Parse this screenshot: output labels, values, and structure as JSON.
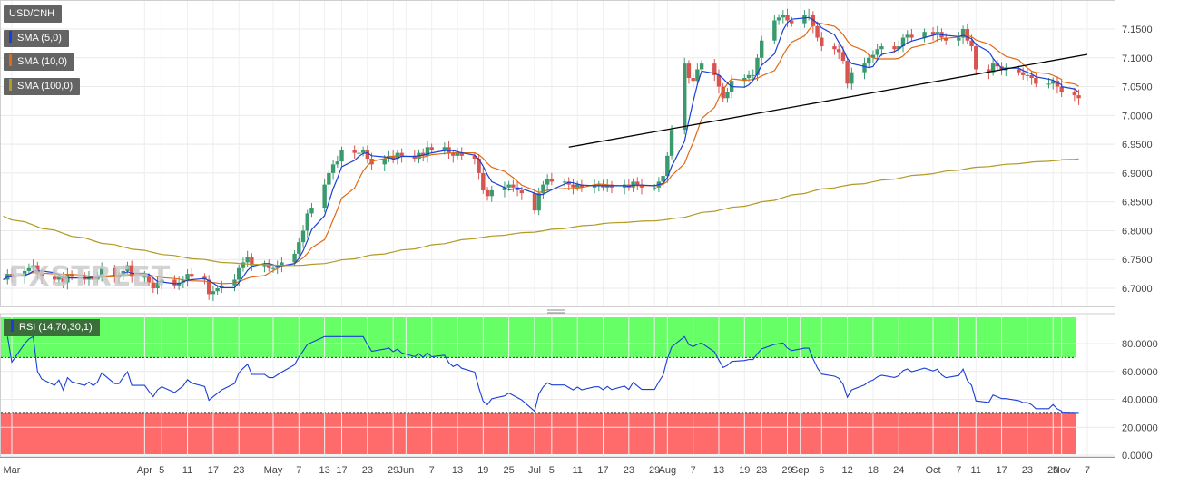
{
  "chart_data": [
    {
      "type": "candlestick",
      "title": "USD/CNH",
      "x_axis": {
        "ticks": [
          "Mar",
          "Apr",
          "5",
          "11",
          "17",
          "23",
          "May",
          "7",
          "13",
          "17",
          "23",
          "29",
          "Jun",
          "7",
          "13",
          "19",
          "25",
          "Jul",
          "5",
          "11",
          "17",
          "23",
          "29",
          "Aug",
          "7",
          "13",
          "19",
          "23",
          "29",
          "Sep",
          "6",
          "12",
          "18",
          "24",
          "Oct",
          "7",
          "11",
          "17",
          "23",
          "29",
          "Nov",
          "7"
        ]
      },
      "y_axis": {
        "ticks": [
          "7.1500",
          "7.1000",
          "7.0500",
          "7.0000",
          "6.9500",
          "6.9000",
          "6.8500",
          "6.8000",
          "6.7500",
          "6.7000"
        ],
        "range": [
          6.67,
          7.19
        ],
        "grid": true
      },
      "legend": [
        "USD/CNH",
        "SMA (5,0)",
        "SMA (10,0)",
        "SMA (100,0)"
      ],
      "colors": {
        "up": "#3a9a6e",
        "down": "#d9534f",
        "sma5": "#1a3fd6",
        "sma10": "#e06a16",
        "sma100": "#b29a24",
        "trendline": "#000000"
      },
      "trendline": [
        {
          "x": "Jul 9",
          "y": 6.945
        },
        {
          "x": "Nov 7",
          "y": 7.106
        }
      ],
      "series_close": [
        [
          "Feb 27",
          6.715
        ],
        [
          "Feb 28",
          6.725
        ],
        [
          "Mar 1",
          6.72
        ],
        [
          "Mar 4",
          6.73
        ],
        [
          "Mar 5",
          6.735
        ],
        [
          "Mar 6",
          6.74
        ],
        [
          "Mar 7",
          6.725
        ],
        [
          "Mar 8",
          6.72
        ],
        [
          "Mar 11",
          6.715
        ],
        [
          "Mar 12",
          6.72
        ],
        [
          "Mar 13",
          6.71
        ],
        [
          "Mar 14",
          6.725
        ],
        [
          "Mar 15",
          6.72
        ],
        [
          "Mar 18",
          6.715
        ],
        [
          "Mar 19",
          6.72
        ],
        [
          "Mar 20",
          6.715
        ],
        [
          "Mar 21",
          6.72
        ],
        [
          "Mar 22",
          6.735
        ],
        [
          "Mar 25",
          6.72
        ],
        [
          "Mar 26",
          6.72
        ],
        [
          "Mar 27",
          6.73
        ],
        [
          "Mar 28",
          6.74
        ],
        [
          "Mar 29",
          6.72
        ],
        [
          "Apr 1",
          6.72
        ],
        [
          "Apr 2",
          6.71
        ],
        [
          "Apr 3",
          6.7
        ],
        [
          "Apr 4",
          6.71
        ],
        [
          "Apr 5",
          6.715
        ],
        [
          "Apr 8",
          6.705
        ],
        [
          "Apr 9",
          6.71
        ],
        [
          "Apr 10",
          6.715
        ],
        [
          "Apr 11",
          6.725
        ],
        [
          "Apr 12",
          6.72
        ],
        [
          "Apr 15",
          6.715
        ],
        [
          "Apr 16",
          6.69
        ],
        [
          "Apr 17",
          6.695
        ],
        [
          "Apr 18",
          6.7
        ],
        [
          "Apr 19",
          6.705
        ],
        [
          "Apr 22",
          6.715
        ],
        [
          "Apr 23",
          6.735
        ],
        [
          "Apr 24",
          6.745
        ],
        [
          "Apr 25",
          6.755
        ],
        [
          "Apr 26",
          6.74
        ],
        [
          "Apr 29",
          6.74
        ],
        [
          "Apr 30",
          6.735
        ],
        [
          "May 1",
          6.735
        ],
        [
          "May 2",
          6.74
        ],
        [
          "May 3",
          6.745
        ],
        [
          "May 6",
          6.76
        ],
        [
          "May 7",
          6.78
        ],
        [
          "May 8",
          6.8
        ],
        [
          "May 9",
          6.83
        ],
        [
          "May 10",
          6.84
        ],
        [
          "May 13",
          6.88
        ],
        [
          "May 14",
          6.9
        ],
        [
          "May 15",
          6.915
        ],
        [
          "May 16",
          6.92
        ],
        [
          "May 17",
          6.94
        ],
        [
          "May 20",
          6.935
        ],
        [
          "May 21",
          6.935
        ],
        [
          "May 22",
          6.94
        ],
        [
          "May 23",
          6.925
        ],
        [
          "May 24",
          6.915
        ],
        [
          "May 27",
          6.925
        ],
        [
          "May 28",
          6.93
        ],
        [
          "May 29",
          6.925
        ],
        [
          "May 30",
          6.935
        ],
        [
          "May 31",
          6.93
        ],
        [
          "Jun 3",
          6.925
        ],
        [
          "Jun 4",
          6.935
        ],
        [
          "Jun 5",
          6.93
        ],
        [
          "Jun 6",
          6.945
        ],
        [
          "Jun 7",
          6.94
        ],
        [
          "Jun 10",
          6.945
        ],
        [
          "Jun 11",
          6.935
        ],
        [
          "Jun 12",
          6.93
        ],
        [
          "Jun 13",
          6.935
        ],
        [
          "Jun 14",
          6.93
        ],
        [
          "Jun 17",
          6.925
        ],
        [
          "Jun 18",
          6.9
        ],
        [
          "Jun 19",
          6.87
        ],
        [
          "Jun 20",
          6.86
        ],
        [
          "Jun 21",
          6.87
        ],
        [
          "Jun 24",
          6.875
        ],
        [
          "Jun 25",
          6.88
        ],
        [
          "Jun 26",
          6.875
        ],
        [
          "Jun 27",
          6.87
        ],
        [
          "Jun 28",
          6.865
        ],
        [
          "Jul 1",
          6.835
        ],
        [
          "Jul 2",
          6.865
        ],
        [
          "Jul 3",
          6.88
        ],
        [
          "Jul 4",
          6.89
        ],
        [
          "Jul 5",
          6.885
        ],
        [
          "Jul 8",
          6.885
        ],
        [
          "Jul 9",
          6.88
        ],
        [
          "Jul 10",
          6.875
        ],
        [
          "Jul 11",
          6.88
        ],
        [
          "Jul 12",
          6.875
        ],
        [
          "Jul 15",
          6.88
        ],
        [
          "Jul 16",
          6.88
        ],
        [
          "Jul 17",
          6.875
        ],
        [
          "Jul 18",
          6.88
        ],
        [
          "Jul 19",
          6.875
        ],
        [
          "Jul 22",
          6.88
        ],
        [
          "Jul 23",
          6.875
        ],
        [
          "Jul 24",
          6.885
        ],
        [
          "Jul 25",
          6.88
        ],
        [
          "Jul 26",
          6.875
        ],
        [
          "Jul 29",
          6.875
        ],
        [
          "Jul 30",
          6.885
        ],
        [
          "Jul 31",
          6.895
        ],
        [
          "Aug 1",
          6.93
        ],
        [
          "Aug 2",
          6.975
        ],
        [
          "Aug 5",
          7.09
        ],
        [
          "Aug 6",
          7.065
        ],
        [
          "Aug 7",
          7.06
        ],
        [
          "Aug 8",
          7.08
        ],
        [
          "Aug 9",
          7.09
        ],
        [
          "Aug 12",
          7.07
        ],
        [
          "Aug 13",
          7.05
        ],
        [
          "Aug 14",
          7.03
        ],
        [
          "Aug 15",
          7.04
        ],
        [
          "Aug 16",
          7.06
        ],
        [
          "Aug 19",
          7.065
        ],
        [
          "Aug 20",
          7.07
        ],
        [
          "Aug 21",
          7.07
        ],
        [
          "Aug 22",
          7.1
        ],
        [
          "Aug 23",
          7.13
        ],
        [
          "Aug 26",
          7.165
        ],
        [
          "Aug 27",
          7.17
        ],
        [
          "Aug 28",
          7.175
        ],
        [
          "Aug 29",
          7.165
        ],
        [
          "Aug 30",
          7.16
        ],
        [
          "Sep 2",
          7.175
        ],
        [
          "Sep 3",
          7.175
        ],
        [
          "Sep 4",
          7.155
        ],
        [
          "Sep 5",
          7.135
        ],
        [
          "Sep 6",
          7.12
        ],
        [
          "Sep 9",
          7.115
        ],
        [
          "Sep 10",
          7.11
        ],
        [
          "Sep 11",
          7.095
        ],
        [
          "Sep 12",
          7.055
        ],
        [
          "Sep 13",
          7.075
        ],
        [
          "Sep 16",
          7.09
        ],
        [
          "Sep 17",
          7.1
        ],
        [
          "Sep 18",
          7.105
        ],
        [
          "Sep 19",
          7.115
        ],
        [
          "Sep 20",
          7.12
        ],
        [
          "Sep 23",
          7.115
        ],
        [
          "Sep 24",
          7.12
        ],
        [
          "Sep 25",
          7.135
        ],
        [
          "Sep 26",
          7.14
        ],
        [
          "Sep 27",
          7.135
        ],
        [
          "Sep 30",
          7.145
        ],
        [
          "Oct 1",
          7.14
        ],
        [
          "Oct 2",
          7.145
        ],
        [
          "Oct 3",
          7.135
        ],
        [
          "Oct 4",
          7.13
        ],
        [
          "Oct 7",
          7.135
        ],
        [
          "Oct 8",
          7.15
        ],
        [
          "Oct 9",
          7.13
        ],
        [
          "Oct 10",
          7.12
        ],
        [
          "Oct 11",
          7.08
        ],
        [
          "Oct 14",
          7.075
        ],
        [
          "Oct 15",
          7.09
        ],
        [
          "Oct 16",
          7.085
        ],
        [
          "Oct 17",
          7.08
        ],
        [
          "Oct 18",
          7.08
        ],
        [
          "Oct 21",
          7.075
        ],
        [
          "Oct 22",
          7.07
        ],
        [
          "Oct 23",
          7.07
        ],
        [
          "Oct 24",
          7.065
        ],
        [
          "Oct 25",
          7.055
        ],
        [
          "Oct 28",
          7.055
        ],
        [
          "Oct 29",
          7.06
        ],
        [
          "Oct 30",
          7.05
        ],
        [
          "Oct 31",
          7.045
        ],
        [
          "Nov 1",
          7.04
        ],
        [
          "Nov 4",
          7.035
        ],
        [
          "Nov 5",
          7.03
        ]
      ]
    },
    {
      "type": "line",
      "title": "RSI (14,70,30,1)",
      "y_axis": {
        "ticks": [
          "80.0000",
          "60.0000",
          "40.0000",
          "20.0000",
          "0.0000"
        ],
        "range": [
          0,
          100
        ]
      },
      "overbought": 70,
      "oversold": 30,
      "colors": {
        "line": "#1a3fd6",
        "overbought": "#66ff66",
        "oversold": "#ff6b6b"
      }
    }
  ]
}
